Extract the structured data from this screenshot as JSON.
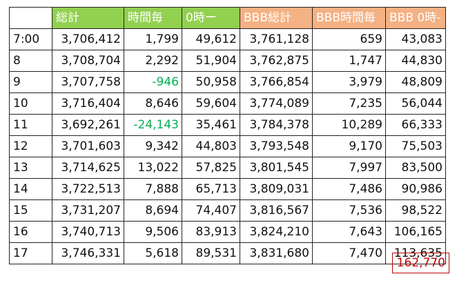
{
  "table": {
    "headers": [
      "",
      "総計",
      "時間毎",
      "0時ー",
      "BBB総計",
      "BBB時間毎",
      "BBB 0時-"
    ],
    "rows": [
      [
        "7:00",
        "3,706,412",
        "1,799",
        "49,612",
        "3,761,128",
        "659",
        "43,083"
      ],
      [
        "8",
        "3,708,704",
        "2,292",
        "51,904",
        "3,762,875",
        "1,747",
        "44,830"
      ],
      [
        "9",
        "3,707,758",
        "-946",
        "50,958",
        "3,766,854",
        "3,979",
        "48,809"
      ],
      [
        "10",
        "3,716,404",
        "8,646",
        "59,604",
        "3,774,089",
        "7,235",
        "56,044"
      ],
      [
        "11",
        "3,692,261",
        "-24,143",
        "35,461",
        "3,784,378",
        "10,289",
        "66,333"
      ],
      [
        "12",
        "3,701,603",
        "9,342",
        "44,803",
        "3,793,548",
        "9,170",
        "75,503"
      ],
      [
        "13",
        "3,714,625",
        "13,022",
        "57,825",
        "3,801,545",
        "7,997",
        "83,500"
      ],
      [
        "14",
        "3,722,513",
        "7,888",
        "65,713",
        "3,809,031",
        "7,486",
        "90,986"
      ],
      [
        "15",
        "3,731,207",
        "8,694",
        "74,407",
        "3,816,567",
        "7,536",
        "98,522"
      ],
      [
        "16",
        "3,740,713",
        "9,506",
        "83,913",
        "3,824,210",
        "7,643",
        "106,165"
      ],
      [
        "17",
        "3,746,331",
        "5,618",
        "89,531",
        "3,831,680",
        "7,470",
        "113,635"
      ]
    ]
  },
  "summary": {
    "total": "162,770"
  },
  "colors": {
    "header_green": "#92d050",
    "header_orange": "#f4b183",
    "header_text": "#ffffff",
    "negative_value": "#00b050",
    "total_box": "#c00000",
    "grid": "#222222"
  }
}
